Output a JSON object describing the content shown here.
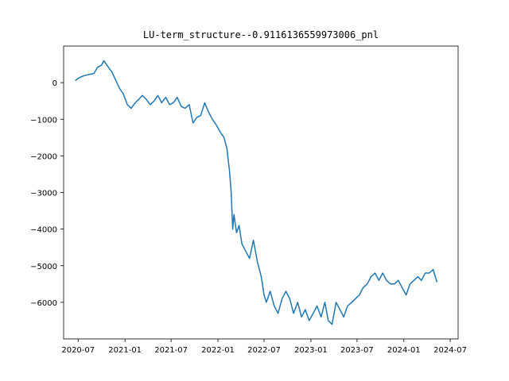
{
  "chart_data": {
    "type": "line",
    "title": "LU-term_structure--0.9116136559973006_pnl",
    "xlabel": "",
    "ylabel": "",
    "x_tick_labels": [
      "2020-07",
      "2021-01",
      "2021-07",
      "2022-01",
      "2022-07",
      "2023-01",
      "2023-07",
      "2024-01",
      "2024-07"
    ],
    "y_tick_labels": [
      "0",
      "−1000",
      "−2000",
      "−3000",
      "−4000",
      "−5000",
      "−6000"
    ],
    "y_ticks": [
      0,
      -1000,
      -2000,
      -3000,
      -4000,
      -5000,
      -6000
    ],
    "x_ticks": [
      "2020-07-01",
      "2021-01-01",
      "2021-07-01",
      "2022-01-01",
      "2022-07-01",
      "2023-01-01",
      "2023-07-01",
      "2024-01-01",
      "2024-07-01"
    ],
    "xlim": [
      "2020-05-05",
      "2024-08-01"
    ],
    "ylim": [
      -7000,
      1000
    ],
    "grid": false,
    "legend": "none",
    "series_color": "#1f77b4",
    "series": [
      {
        "x": [
          "2020-06-20",
          "2020-07-01",
          "2020-07-20",
          "2020-08-10",
          "2020-09-01",
          "2020-09-15",
          "2020-10-01",
          "2020-10-10",
          "2020-10-25",
          "2020-11-10",
          "2020-11-25",
          "2020-12-10",
          "2020-12-25",
          "2021-01-10",
          "2021-01-25",
          "2021-02-10",
          "2021-02-25",
          "2021-03-10",
          "2021-03-25",
          "2021-04-10",
          "2021-04-25",
          "2021-05-10",
          "2021-05-25",
          "2021-06-10",
          "2021-06-25",
          "2021-07-10",
          "2021-07-25",
          "2021-08-10",
          "2021-08-25",
          "2021-09-10",
          "2021-09-25",
          "2021-10-10",
          "2021-10-25",
          "2021-11-10",
          "2021-11-25",
          "2021-12-10",
          "2021-12-25",
          "2022-01-10",
          "2022-01-25",
          "2022-02-05",
          "2022-02-15",
          "2022-02-22",
          "2022-02-28",
          "2022-03-05",
          "2022-03-15",
          "2022-03-25",
          "2022-04-05",
          "2022-04-20",
          "2022-05-05",
          "2022-05-20",
          "2022-06-05",
          "2022-06-20",
          "2022-07-01",
          "2022-07-10",
          "2022-07-25",
          "2022-08-10",
          "2022-08-25",
          "2022-09-10",
          "2022-09-25",
          "2022-10-10",
          "2022-10-25",
          "2022-11-10",
          "2022-11-25",
          "2022-12-10",
          "2022-12-25",
          "2023-01-10",
          "2023-01-25",
          "2023-02-10",
          "2023-02-25",
          "2023-03-10",
          "2023-03-25",
          "2023-04-10",
          "2023-04-25",
          "2023-05-10",
          "2023-05-25",
          "2023-06-10",
          "2023-06-25",
          "2023-07-10",
          "2023-07-25",
          "2023-08-10",
          "2023-08-25",
          "2023-09-10",
          "2023-09-25",
          "2023-10-10",
          "2023-10-25",
          "2023-11-10",
          "2023-11-25",
          "2023-12-10",
          "2023-12-25",
          "2024-01-10",
          "2024-01-25",
          "2024-02-10",
          "2024-02-25",
          "2024-03-10",
          "2024-03-25",
          "2024-04-10",
          "2024-04-25",
          "2024-05-10"
        ],
        "y": [
          50,
          120,
          180,
          220,
          250,
          420,
          480,
          600,
          450,
          300,
          80,
          -150,
          -300,
          -600,
          -700,
          -550,
          -450,
          -350,
          -450,
          -600,
          -500,
          -350,
          -550,
          -400,
          -600,
          -550,
          -400,
          -650,
          -700,
          -600,
          -1100,
          -950,
          -900,
          -550,
          -800,
          -1000,
          -1150,
          -1350,
          -1500,
          -1800,
          -2400,
          -3000,
          -4000,
          -3600,
          -4100,
          -3900,
          -4400,
          -4600,
          -4800,
          -4300,
          -4900,
          -5300,
          -5800,
          -6000,
          -5700,
          -6100,
          -6300,
          -5900,
          -5700,
          -5900,
          -6300,
          -6000,
          -6400,
          -6200,
          -6500,
          -6300,
          -6100,
          -6400,
          -6000,
          -6500,
          -6600,
          -6000,
          -6200,
          -6400,
          -6100,
          -6000,
          -5900,
          -5800,
          -5600,
          -5500,
          -5300,
          -5200,
          -5400,
          -5200,
          -5400,
          -5500,
          -5500,
          -5400,
          -5600,
          -5800,
          -5500,
          -5400,
          -5300,
          -5400,
          -5200,
          -5200,
          -5100,
          -5450
        ]
      }
    ]
  }
}
